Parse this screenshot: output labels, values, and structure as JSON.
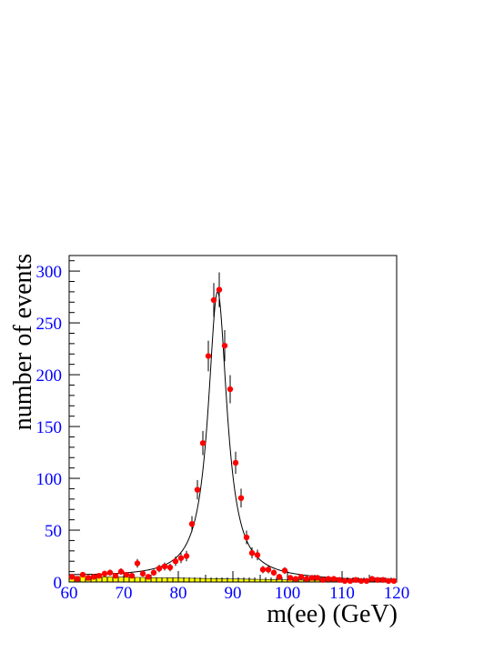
{
  "chart_data": {
    "type": "scatter",
    "title": "",
    "xlabel": "m(ee) (GeV)",
    "ylabel": "number of events",
    "xlim": [
      60,
      120
    ],
    "ylim": [
      0,
      315
    ],
    "xticks": [
      60,
      70,
      80,
      90,
      100,
      110,
      120
    ],
    "yticks": [
      0,
      50,
      100,
      150,
      200,
      250,
      300
    ],
    "grid": false,
    "legend": "none",
    "colors": {
      "data_points": "#ff0000",
      "error_bars": "#000000",
      "fit_line": "#000000",
      "background_fill": "#ffff00",
      "tick_labels": "#0000ff"
    },
    "series": [
      {
        "kind": "data",
        "x": [
          60.5,
          61.5,
          62.5,
          63.5,
          64.5,
          65.5,
          66.5,
          67.5,
          68.5,
          69.5,
          70.5,
          71.5,
          72.5,
          73.5,
          74.5,
          75.5,
          76.5,
          77.5,
          78.5,
          79.5,
          80.5,
          81.5,
          82.5,
          83.5,
          84.5,
          85.5,
          86.5,
          87.5,
          88.5,
          89.5,
          90.5,
          91.5,
          92.5,
          93.5,
          94.5,
          95.5,
          96.5,
          97.5,
          98.5,
          99.5,
          100.5,
          101.5,
          102.5,
          103.5,
          104.5,
          105.5,
          106.5,
          107.5,
          108.5,
          109.5,
          110.5,
          111.5,
          112.5,
          113.5,
          114.5,
          115.5,
          116.5,
          117.5,
          118.5,
          119.5
        ],
        "y": [
          5,
          3,
          7,
          4,
          5,
          6,
          8,
          9,
          6,
          10,
          7,
          6,
          18,
          8,
          5,
          9,
          13,
          15,
          14,
          20,
          23,
          25,
          56,
          89,
          134,
          218,
          272,
          282,
          228,
          186,
          115,
          81,
          43,
          28,
          26,
          12,
          12,
          9,
          5,
          11,
          4,
          3,
          5,
          3,
          4,
          4,
          2,
          3,
          3,
          2,
          1,
          1,
          2,
          1,
          1,
          3,
          2,
          2,
          1,
          1
        ],
        "yerr": [
          2.2,
          1.7,
          2.6,
          2,
          2.2,
          2.4,
          2.8,
          3,
          2.4,
          3.2,
          2.6,
          2.4,
          4.2,
          2.8,
          2.2,
          3,
          3.6,
          3.9,
          3.7,
          4.5,
          4.8,
          5,
          7.5,
          9.4,
          11.6,
          14.8,
          16.5,
          16.8,
          15.1,
          13.6,
          10.7,
          9,
          6.6,
          5.3,
          5.1,
          3.5,
          3.5,
          3,
          2.2,
          3.3,
          2,
          1.7,
          2.2,
          1.7,
          2,
          2,
          1.4,
          1.7,
          1.7,
          1.4,
          1,
          1,
          1.4,
          1,
          1,
          1.7,
          1.4,
          1.4,
          1,
          1
        ]
      },
      {
        "kind": "fit",
        "model": "breit-wigner-plus-background",
        "peak_mass": 87.2,
        "width": 4.2,
        "peak_height": 277
      },
      {
        "kind": "background",
        "x": [
          60,
          120
        ],
        "y": [
          5.5,
          0.4
        ]
      }
    ]
  }
}
